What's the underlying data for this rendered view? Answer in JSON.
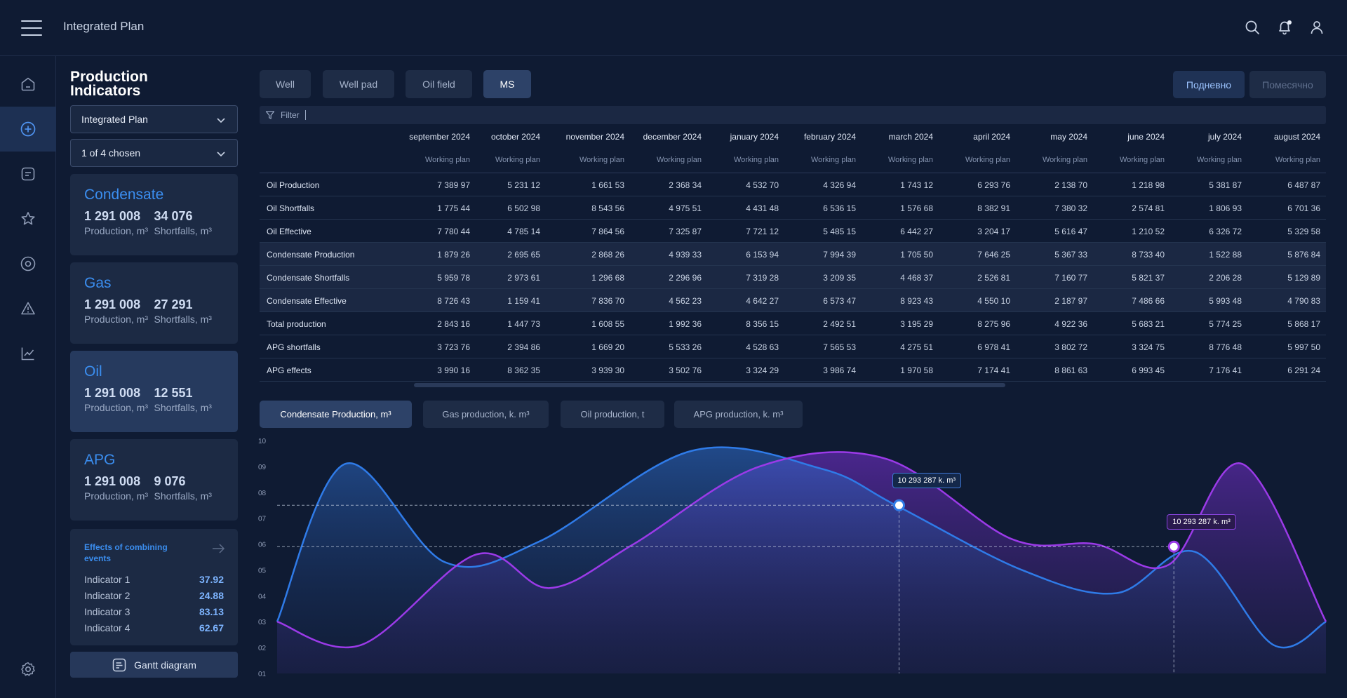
{
  "app": {
    "title": "Integrated Plan"
  },
  "panel": {
    "title": "Production Indicators",
    "plan_select": "Integrated Plan",
    "chosen_select": "1 of 4 chosen",
    "cards": [
      {
        "name": "Condensate",
        "production": "1 291 008",
        "production_unit": "Production, m³",
        "shortfalls": "34 076",
        "shortfalls_unit": "Shortfalls, m³"
      },
      {
        "name": "Gas",
        "production": "1 291 008",
        "production_unit": "Production, m³",
        "shortfalls": "27 291",
        "shortfalls_unit": "Shortfalls, m³"
      },
      {
        "name": "Oil",
        "production": "1 291 008",
        "production_unit": "Production, m³",
        "shortfalls": "12 551",
        "shortfalls_unit": "Shortfalls, m³"
      },
      {
        "name": "APG",
        "production": "1 291 008",
        "production_unit": "Production, m³",
        "shortfalls": "9 076",
        "shortfalls_unit": "Shortfalls, m³"
      }
    ],
    "effects": {
      "title": "Effects of combining events",
      "items": [
        {
          "label": "Indicator 1",
          "value": "37.92"
        },
        {
          "label": "Indicator 2",
          "value": "24.88"
        },
        {
          "label": "Indicator 3",
          "value": "83.13"
        },
        {
          "label": "Indicator 4",
          "value": "62.67"
        }
      ]
    },
    "gantt_label": "Gantt diagram"
  },
  "tabs": [
    "Well",
    "Well pad",
    "Oil field",
    "MS"
  ],
  "period_buttons": [
    "Подневно",
    "Помесячно"
  ],
  "filter_label": "Filter",
  "table": {
    "months": [
      "september 2024",
      "october 2024",
      "november 2024",
      "december 2024",
      "january 2024",
      "february 2024",
      "march 2024",
      "april 2024",
      "may 2024",
      "june 2024",
      "july 2024",
      "august 2024"
    ],
    "sub_label": "Working plan",
    "rows": [
      {
        "label": "Oil Production",
        "values": [
          "7 389 97",
          "5 231 12",
          "1 661 53",
          "2 368 34",
          "4 532 70",
          "4 326 94",
          "1 743 12",
          "6 293 76",
          "2 138 70",
          "1 218 98",
          "5 381 87",
          "6 487 87"
        ]
      },
      {
        "label": "Oil Shortfalls",
        "values": [
          "1 775 44",
          "6 502 98",
          "8 543 56",
          "4 975 51",
          "4 431 48",
          "6 536 15",
          "1 576 68",
          "8 382 91",
          "7 380 32",
          "2 574 81",
          "1 806 93",
          "6 701 36"
        ]
      },
      {
        "label": "Oil Effective",
        "values": [
          "7 780 44",
          "4 785 14",
          "7 864 56",
          "7 325 87",
          "7 721 12",
          "5 485 15",
          "6 442 27",
          "3 204 17",
          "5 616 47",
          "1 210 52",
          "6 326 72",
          "5 329 58"
        ]
      },
      {
        "label": "Condensate Production",
        "values": [
          "1 879 26",
          "2 695 65",
          "2 868 26",
          "4 939 33",
          "6 153 94",
          "7 994 39",
          "1 705 50",
          "7 646 25",
          "5 367 33",
          "8 733 40",
          "1 522 88",
          "5 876 84"
        ]
      },
      {
        "label": "Condensate Shortfalls",
        "values": [
          "5 959 78",
          "2 973 61",
          "1 296 68",
          "2 296 96",
          "7 319 28",
          "3 209 35",
          "4 468 37",
          "2 526 81",
          "7 160 77",
          "5 821 37",
          "2 206 28",
          "5 129 89"
        ]
      },
      {
        "label": "Condensate Effective",
        "values": [
          "8 726 43",
          "1 159 41",
          "7 836 70",
          "4 562 23",
          "4 642 27",
          "6 573 47",
          "8 923 43",
          "4 550 10",
          "2 187 97",
          "7 486 66",
          "5 993 48",
          "4 790 83"
        ]
      },
      {
        "label": "Total production",
        "values": [
          "2 843 16",
          "1 447 73",
          "1 608 55",
          "1 992 36",
          "8 356 15",
          "2 492 51",
          "3 195 29",
          "8 275 96",
          "4 922 36",
          "5 683 21",
          "5 774 25",
          "5 868 17"
        ]
      },
      {
        "label": "APG shortfalls",
        "values": [
          "3 723 76",
          "2 394 86",
          "1 669 20",
          "5 533 26",
          "4 528 63",
          "7 565 53",
          "4 275 51",
          "6 978 41",
          "3 802 72",
          "3 324 75",
          "8 776 48",
          "5 997 50"
        ]
      },
      {
        "label": "APG effects",
        "values": [
          "3 990 16",
          "8 362 35",
          "3 939 30",
          "3 502 76",
          "3 324 29",
          "3 986 74",
          "1 970 58",
          "7 174 41",
          "8 861 63",
          "6 993 45",
          "7 176 41",
          "6 291 24"
        ]
      }
    ]
  },
  "chart_tabs": [
    "Condensate Production, m³",
    "Gas production, k. m³",
    "Oil production, t",
    "APG production, k. m³"
  ],
  "chart_data": {
    "type": "area",
    "y_ticks": [
      "10",
      "09",
      "08",
      "07",
      "06",
      "05",
      "04",
      "03",
      "02",
      "01"
    ],
    "ylim": [
      1,
      10
    ],
    "xlim": [
      0,
      100
    ],
    "series": [
      {
        "color": "#2f7be8",
        "x": [
          0,
          6.5,
          16,
          25,
          39.5,
          52,
          59,
          71,
          80,
          87.5,
          95,
          100
        ],
        "y": [
          3.0,
          9.1,
          5.3,
          6.1,
          9.6,
          8.9,
          7.5,
          5.0,
          4.1,
          5.7,
          2.1,
          3.0
        ]
      },
      {
        "color": "#9b3ae8",
        "x": [
          0,
          8,
          19,
          26,
          34,
          46,
          58,
          70,
          78,
          85,
          92,
          100
        ],
        "y": [
          3.0,
          2.1,
          5.6,
          4.3,
          6.0,
          9.0,
          9.3,
          6.2,
          6.0,
          5.2,
          9.1,
          3.0
        ]
      }
    ],
    "markers": [
      {
        "series": 0,
        "x": 59.3,
        "y": 7.5,
        "label": "10 293 287 k. m³"
      },
      {
        "series": 1,
        "x": 85.5,
        "y": 5.9,
        "label": "10 293 287 k. m³"
      }
    ]
  },
  "colors": {
    "accent": "#3b8ef0",
    "background": "#0f1b33",
    "card": "#1c2a44"
  }
}
